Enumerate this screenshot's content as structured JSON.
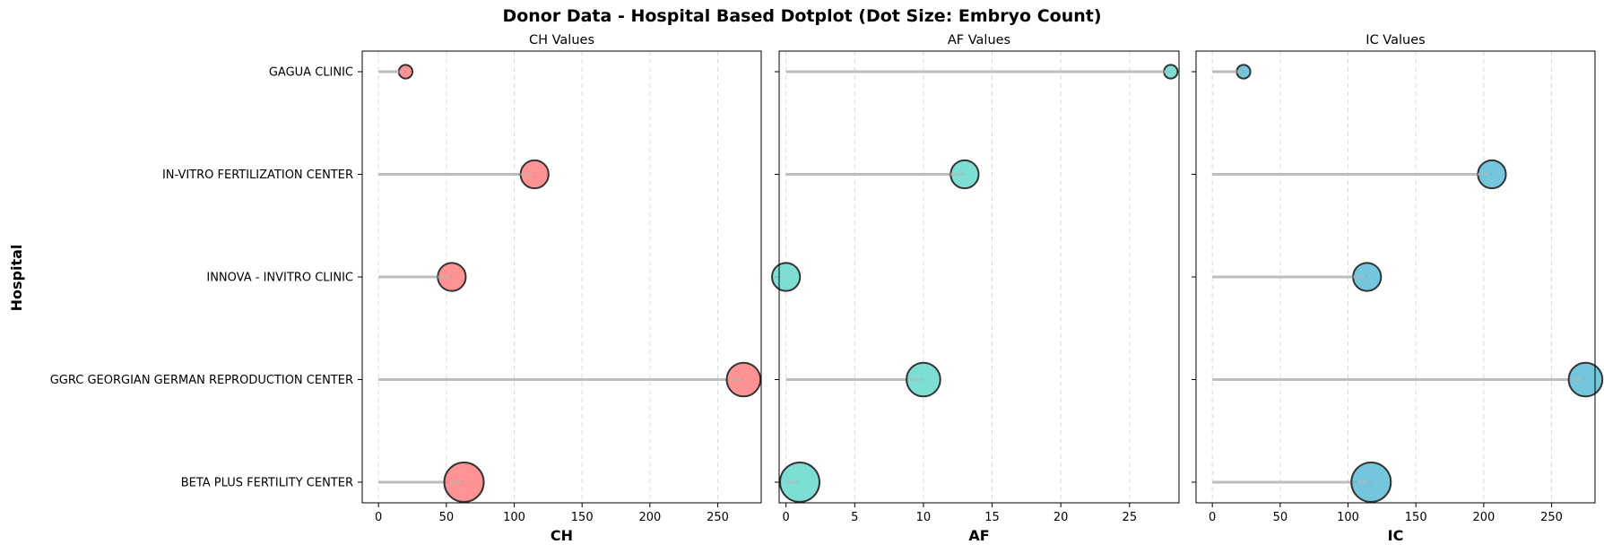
{
  "figure": {
    "title": "Donor Data - Hospital Based Dotplot (Dot Size: Embryo Count)",
    "ylabel": "Hospital"
  },
  "chart_data": {
    "type": "scatter",
    "style": "lollipop dot plot",
    "categories": [
      "GAGUA CLINIC",
      "IN-VITRO FERTILIZATION CENTER ",
      "INNOVA - INVITRO CLINIC",
      "GGRC GEORGIAN GERMAN REPRODUCTION CENTER",
      "BETA PLUS FERTILITY CENTER"
    ],
    "grid": "x dashed",
    "panels": [
      {
        "title": "CH Values",
        "xlabel": "CH",
        "color": "#ff7f7f",
        "xlim": [
          -12,
          282
        ],
        "xticks": [
          0,
          50,
          100,
          150,
          200,
          250
        ],
        "values": [
          20,
          115,
          54,
          269,
          63
        ]
      },
      {
        "title": "AF Values",
        "xlabel": "AF",
        "color": "#66d9cc",
        "xlim": [
          -0.5,
          28.6
        ],
        "xticks": [
          0,
          5,
          10,
          15,
          20,
          25
        ],
        "values": [
          28,
          13,
          0,
          10,
          1
        ]
      },
      {
        "title": "IC Values",
        "xlabel": "IC",
        "color": "#5bbcd6",
        "xlim": [
          -12,
          282
        ],
        "xticks": [
          0,
          50,
          100,
          150,
          200,
          250
        ],
        "values": [
          23,
          206,
          114,
          275,
          117
        ]
      }
    ],
    "embryo_count_relative": [
      0.1,
      0.6,
      0.6,
      0.8,
      1.0
    ]
  }
}
